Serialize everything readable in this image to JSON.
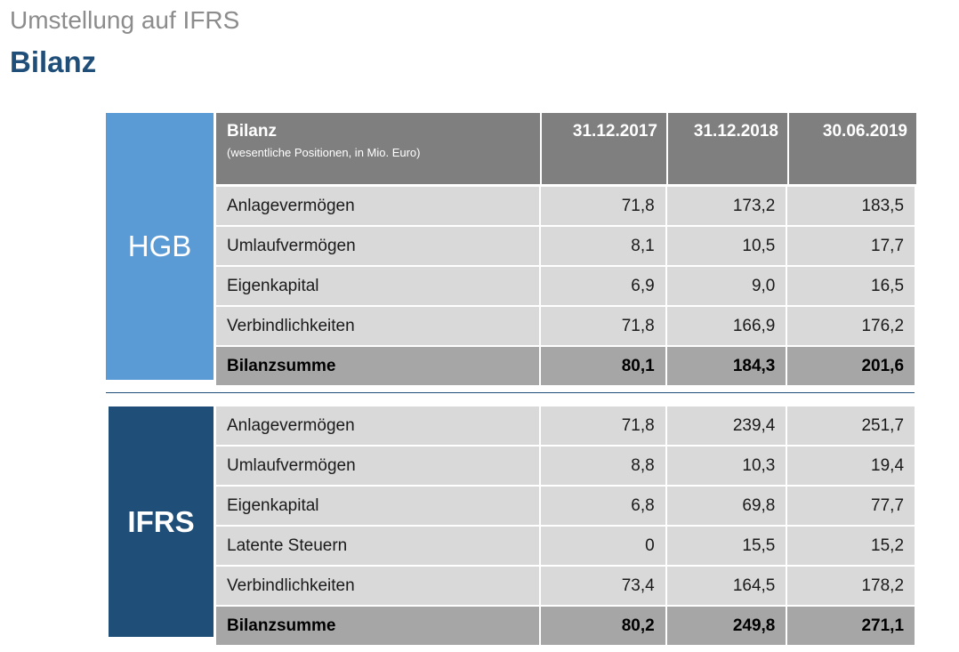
{
  "header": {
    "subtitle": "Umstellung auf IFRS",
    "title": "Bilanz"
  },
  "colors": {
    "hgb_accent": "#5b9bd5",
    "ifrs_accent": "#1f4e79",
    "header_bg": "#7f7f7f",
    "row_bg": "#d9d9d9",
    "total_bg": "#a6a6a6"
  },
  "table": {
    "header": {
      "label": "Bilanz",
      "sublabel": "(wesentliche Positionen, in Mio. Euro)",
      "columns": [
        "31.12.2017",
        "31.12.2018",
        "30.06.2019"
      ]
    },
    "hgb": {
      "label": "HGB",
      "rows": [
        {
          "label": "Anlagevermögen",
          "values": [
            "71,8",
            "173,2",
            "183,5"
          ]
        },
        {
          "label": "Umlaufvermögen",
          "values": [
            "8,1",
            "10,5",
            "17,7"
          ]
        },
        {
          "label": "Eigenkapital",
          "values": [
            "6,9",
            "9,0",
            "16,5"
          ]
        },
        {
          "label": "Verbindlichkeiten",
          "values": [
            "71,8",
            "166,9",
            "176,2"
          ]
        }
      ],
      "total": {
        "label": "Bilanzsumme",
        "values": [
          "80,1",
          "184,3",
          "201,6"
        ]
      }
    },
    "ifrs": {
      "label": "IFRS",
      "rows": [
        {
          "label": "Anlagevermögen",
          "values": [
            "71,8",
            "239,4",
            "251,7"
          ]
        },
        {
          "label": "Umlaufvermögen",
          "values": [
            "8,8",
            "10,3",
            "19,4"
          ]
        },
        {
          "label": "Eigenkapital",
          "values": [
            "6,8",
            "69,8",
            "77,7"
          ]
        },
        {
          "label": "Latente Steuern",
          "values": [
            "0",
            "15,5",
            "15,2"
          ]
        },
        {
          "label": "Verbindlichkeiten",
          "values": [
            "73,4",
            "164,5",
            "178,2"
          ]
        }
      ],
      "total": {
        "label": "Bilanzsumme",
        "values": [
          "80,2",
          "249,8",
          "271,1"
        ]
      }
    }
  }
}
